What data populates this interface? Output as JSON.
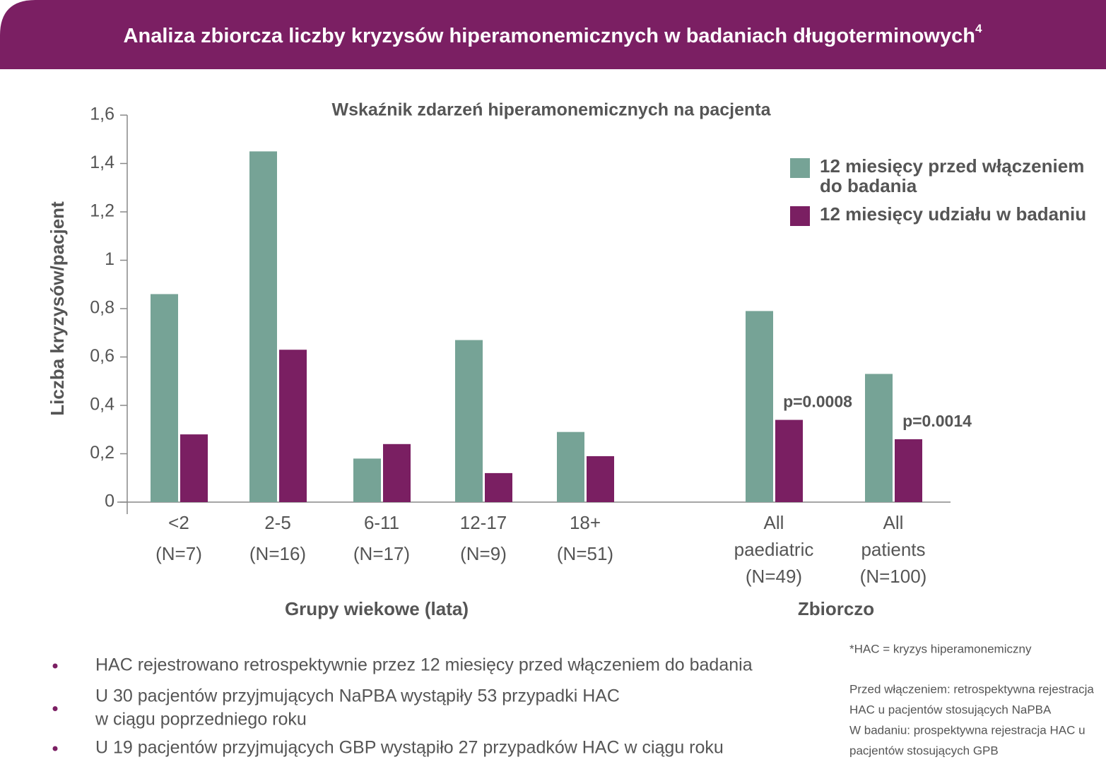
{
  "header": {
    "title": "Analiza zbiorcza liczby kryzysów hiperamonemicznych w badaniach długoterminowych",
    "title_superscript": "4"
  },
  "chart_data": {
    "type": "bar",
    "subtitle": "Wskaźnik zdarzeń hiperamonemicznych na pacjenta",
    "y_label": "Liczba kryzysów/pacjent",
    "categories": [
      [
        "<2",
        "(N=7)"
      ],
      [
        "2-5",
        "(N=16)"
      ],
      [
        "6-11",
        "(N=17)"
      ],
      [
        "12-17",
        "(N=9)"
      ],
      [
        "18+",
        "(N=51)"
      ],
      [
        "All",
        "paediatric",
        "(N=49)"
      ],
      [
        "All",
        "patients",
        "(N=100)"
      ]
    ],
    "groups": [
      "Grupy wiekowe (lata)",
      "Zbiorczo"
    ],
    "series": [
      {
        "name": "12 miesięcy przed włączeniem do badania",
        "color": "#76a396",
        "values": [
          0.86,
          1.45,
          0.18,
          0.67,
          0.29,
          0.79,
          0.53
        ]
      },
      {
        "name": "12 miesięcy udziału w badaniu",
        "color": "#7a1f62",
        "values": [
          0.28,
          0.63,
          0.24,
          0.12,
          0.19,
          0.34,
          0.26
        ]
      }
    ],
    "annotations": [
      {
        "text": "p=0.0008",
        "category": 5
      },
      {
        "text": "p=0.0014",
        "category": 6
      }
    ],
    "ylim": [
      0,
      1.6
    ],
    "yticks": [
      0,
      {
        "value": 0.2,
        "label": "0,2"
      },
      {
        "value": 0.4,
        "label": "0,4"
      },
      {
        "value": 0.6,
        "label": "0,6"
      },
      {
        "value": 0.8,
        "label": "0,8"
      },
      1,
      {
        "value": 1.2,
        "label": "1,2"
      },
      {
        "value": 1.4,
        "label": "1,4"
      },
      {
        "value": 1.6,
        "label": "1,6"
      }
    ],
    "legend": "top-right"
  },
  "bullets": [
    [
      "HAC rejestrowano retrospektywnie przez 12 miesięcy przed włączeniem do badania"
    ],
    [
      "U 30 pacjentów przyjmujących NaPBA wystąpiły 53 przypadki HAC",
      "w ciągu poprzedniego roku"
    ],
    [
      "U 19 pacjentów przyjmujących GBP wystąpiło 27 przypadków HAC w ciągu roku"
    ]
  ],
  "footnotes": [
    "*HAC = kryzys hiperamonemiczny",
    "Przed włączeniem: retrospektywna rejestracja",
    "HAC u pacjentów stosujących NaPBA",
    "W badaniu: prospektywna rejestracja HAC u",
    "pacjentów stosujących GPB"
  ]
}
